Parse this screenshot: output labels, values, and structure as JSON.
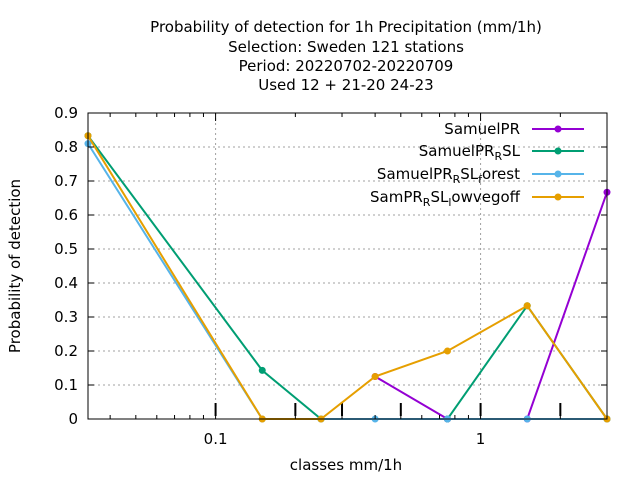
{
  "chart_data": {
    "type": "line",
    "title_lines": [
      "Probability of detection  for 1h Precipitation (mm/1h)",
      "Selection: Sweden    121 stations",
      "Period: 20220702-20220709",
      "Used  12 + 21-20 24-23"
    ],
    "xlabel": "classes mm/1h",
    "ylabel": "Probability of detection",
    "xscale": "log",
    "xlim": [
      0.033,
      3.0
    ],
    "ylim": [
      0,
      0.9
    ],
    "x_ticks": [
      0.1,
      1
    ],
    "x_tick_labels": [
      "0.1",
      "1"
    ],
    "y_ticks": [
      0,
      0.1,
      0.2,
      0.3,
      0.4,
      0.5,
      0.6,
      0.7,
      0.8,
      0.9
    ],
    "y_tick_labels": [
      "0",
      "0.1",
      "0.2",
      "0.3",
      "0.4",
      "0.5",
      "0.6",
      "0.7",
      "0.8",
      "0.9"
    ],
    "class_marks": [
      0.1,
      0.2,
      0.3,
      0.5,
      1,
      2
    ],
    "grid": true,
    "legend_position": "top-right",
    "series": [
      {
        "name": "SamuelPR",
        "color": "#9400d3",
        "points": [
          [
            0.4,
            0.125
          ],
          [
            0.75,
            0.0
          ],
          [
            1.5,
            0.0
          ],
          [
            3.0,
            0.667
          ]
        ]
      },
      {
        "name": "SamuelPR_RSL",
        "legend_parts": [
          [
            "SamuelPR",
            "n"
          ],
          [
            "R",
            "s"
          ],
          [
            "SL",
            "n"
          ]
        ],
        "color": "#009e73",
        "points": [
          [
            0.033,
            0.833
          ],
          [
            0.15,
            0.143
          ],
          [
            0.25,
            0.0
          ],
          [
            0.75,
            0.0
          ],
          [
            1.5,
            0.333
          ],
          [
            3.0,
            0.0
          ]
        ]
      },
      {
        "name": "SamuelPR_RSL_forest",
        "legend_parts": [
          [
            "SamuelPR",
            "n"
          ],
          [
            "R",
            "s"
          ],
          [
            "SL",
            "n"
          ],
          [
            "f",
            "s"
          ],
          [
            "orest",
            "n"
          ]
        ],
        "color": "#56b4e9",
        "points": [
          [
            0.033,
            0.81
          ],
          [
            0.15,
            0.0
          ],
          [
            0.25,
            0.0
          ],
          [
            0.4,
            0.0
          ],
          [
            0.75,
            0.0
          ],
          [
            1.5,
            0.0
          ],
          [
            3.0,
            0.0
          ]
        ]
      },
      {
        "name": "SamPR_RSL_lowvegoff",
        "legend_parts": [
          [
            "SamPR",
            "n"
          ],
          [
            "R",
            "s"
          ],
          [
            "SL",
            "n"
          ],
          [
            "l",
            "s"
          ],
          [
            "owvegoff",
            "n"
          ]
        ],
        "color": "#e69f00",
        "points": [
          [
            0.033,
            0.833
          ],
          [
            0.15,
            0.0
          ],
          [
            0.25,
            0.0
          ],
          [
            0.4,
            0.125
          ],
          [
            0.75,
            0.2
          ],
          [
            1.5,
            0.333
          ],
          [
            3.0,
            0.0
          ]
        ]
      }
    ]
  }
}
